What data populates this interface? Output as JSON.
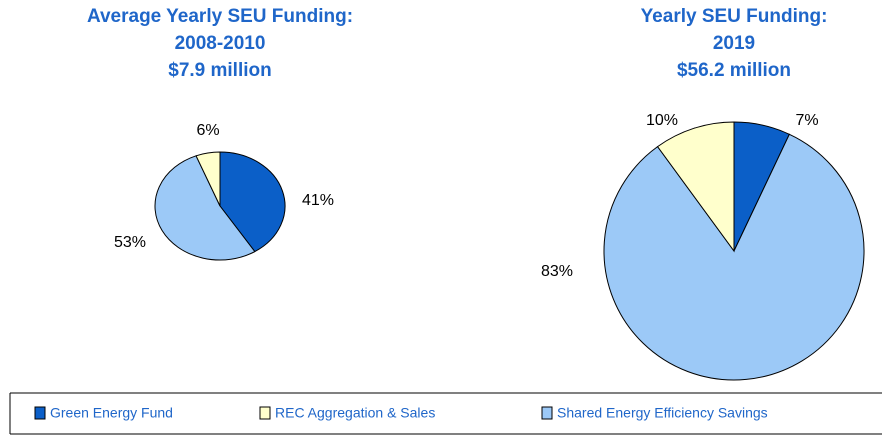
{
  "chart_data": [
    {
      "type": "pie",
      "title": [
        "Average Yearly SEU Funding:",
        "2008-2010",
        "$7.9 million"
      ],
      "values": [
        41,
        53,
        6
      ],
      "value_labels": [
        "41%",
        "53%",
        "6%"
      ],
      "colors": [
        "#0b5fc8",
        "#9cc9f7",
        "#ffffcc"
      ]
    },
    {
      "type": "pie",
      "title": [
        "Yearly SEU Funding:",
        "2019",
        "$56.2 million"
      ],
      "values": [
        7,
        83,
        10
      ],
      "value_labels": [
        "7%",
        "83%",
        "10%"
      ],
      "colors": [
        "#0b5fc8",
        "#9cc9f7",
        "#ffffcc"
      ]
    }
  ],
  "legend": {
    "names": [
      "Green Energy Fund",
      "REC Aggregation & Sales",
      "Shared Energy Efficiency Savings"
    ],
    "colors": [
      "#0b5fc8",
      "#ffffcc",
      "#9cc9f7"
    ]
  }
}
